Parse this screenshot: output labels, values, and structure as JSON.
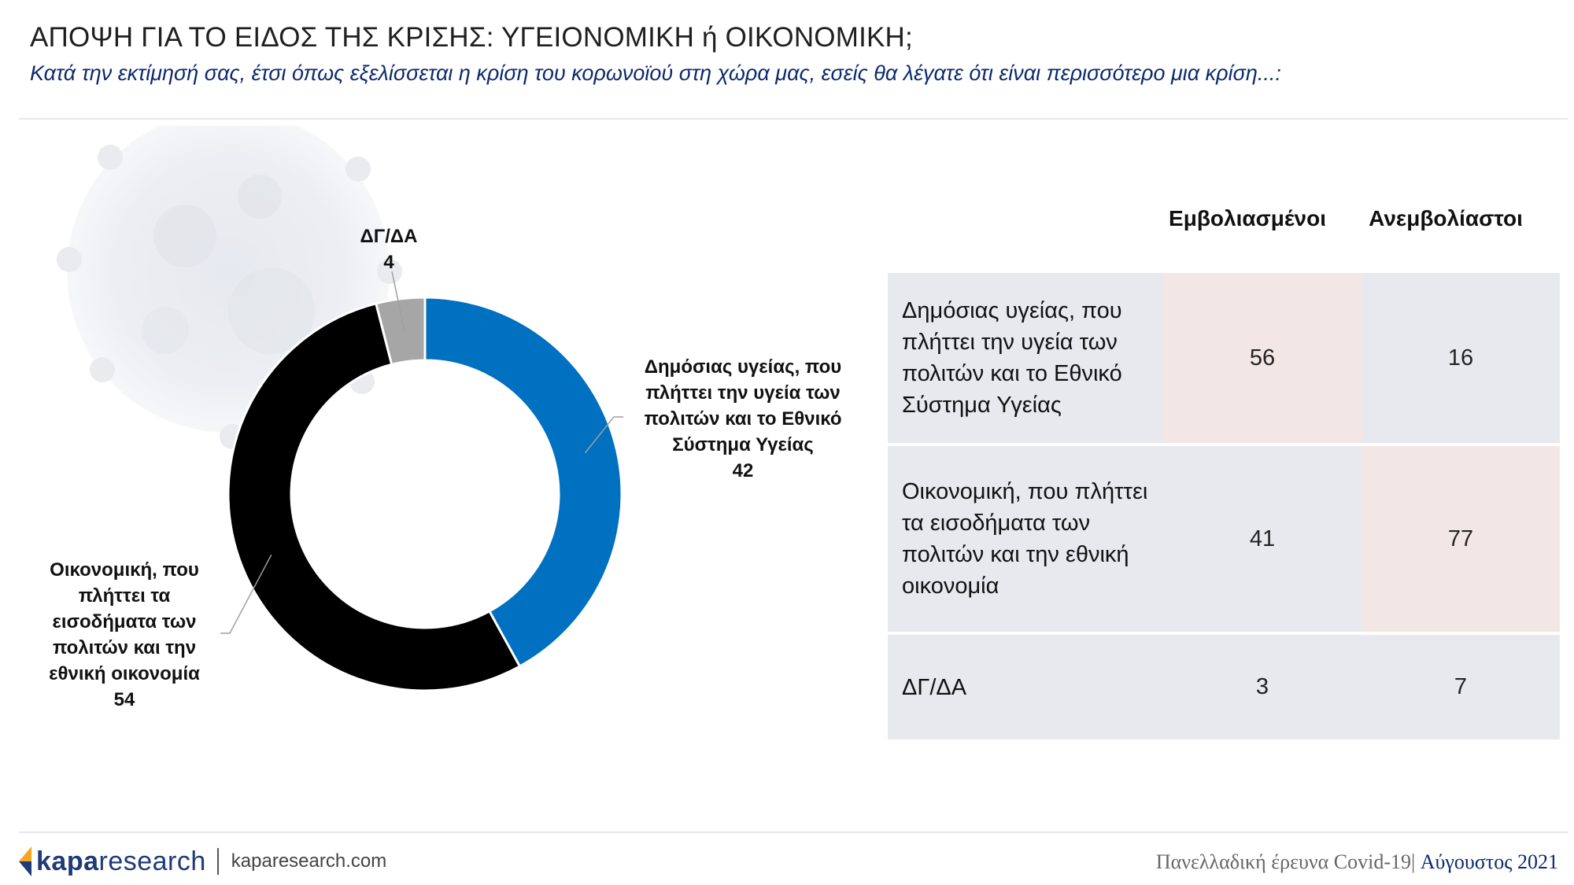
{
  "header": {
    "title": "ΑΠΟΨΗ ΓΙΑ ΤΟ ΕΙΔΟΣ ΤΗΣ ΚΡΙΣΗΣ: ΥΓΕΙΟΝΟΜΙΚΗ ή ΟΙΚΟΝΟΜΙΚΗ;",
    "subtitle": "Κατά την εκτίμησή σας, έτσι όπως εξελίσσεται η κρίση του κορωνοϊού στη χώρα μας, εσείς θα λέγατε ότι είναι περισσότερο μια κρίση...:"
  },
  "colors": {
    "health": "#0070c0",
    "economic": "#000000",
    "dk": "#a6a6a6",
    "highlight": "#f3e7e6",
    "row_bg": "#e8e9ef"
  },
  "chart_data": {
    "type": "pie",
    "variant": "donut",
    "slices": [
      {
        "label_lines": [
          "Δημόσιας υγείας, που",
          "πλήττει την υγεία των",
          "πολιτών και το Εθνικό",
          "Σύστημα Υγείας"
        ],
        "value": 42,
        "value_label": "42",
        "color": "#0070c0"
      },
      {
        "label_lines": [
          "Οικονομική, που",
          "πλήττει τα",
          "εισοδήματα των",
          "πολιτών και την",
          "εθνική οικονομία"
        ],
        "value": 54,
        "value_label": "54",
        "color": "#000000"
      },
      {
        "label_lines": [
          "ΔΓ/ΔΑ"
        ],
        "value": 4,
        "value_label": "4",
        "color": "#a6a6a6"
      }
    ]
  },
  "table": {
    "columns": [
      "Εμβολιασμένοι",
      "Ανεμβολίαστοι"
    ],
    "rows": [
      {
        "label_lines": [
          "Δημόσιας υγείας, που",
          "πλήττει την υγεία των",
          "πολιτών και το Εθνικό",
          "Σύστημα Υγείας"
        ],
        "values": [
          "56",
          "16"
        ]
      },
      {
        "label_lines": [
          "Οικονομική, που πλήττει",
          "τα εισοδήματα των",
          "πολιτών και την εθνική",
          "οικονομία"
        ],
        "values": [
          "41",
          "77"
        ]
      },
      {
        "label_lines": [
          "ΔΓ/ΔΑ"
        ],
        "values": [
          "3",
          "7"
        ]
      }
    ]
  },
  "footer": {
    "logo_bold": "kapa",
    "logo_light": "research",
    "url": "kaparesearch.com",
    "survey": "Πανελλαδική έρευνα Covid-19",
    "separator": "|",
    "date": " Αύγουστος 2021"
  }
}
